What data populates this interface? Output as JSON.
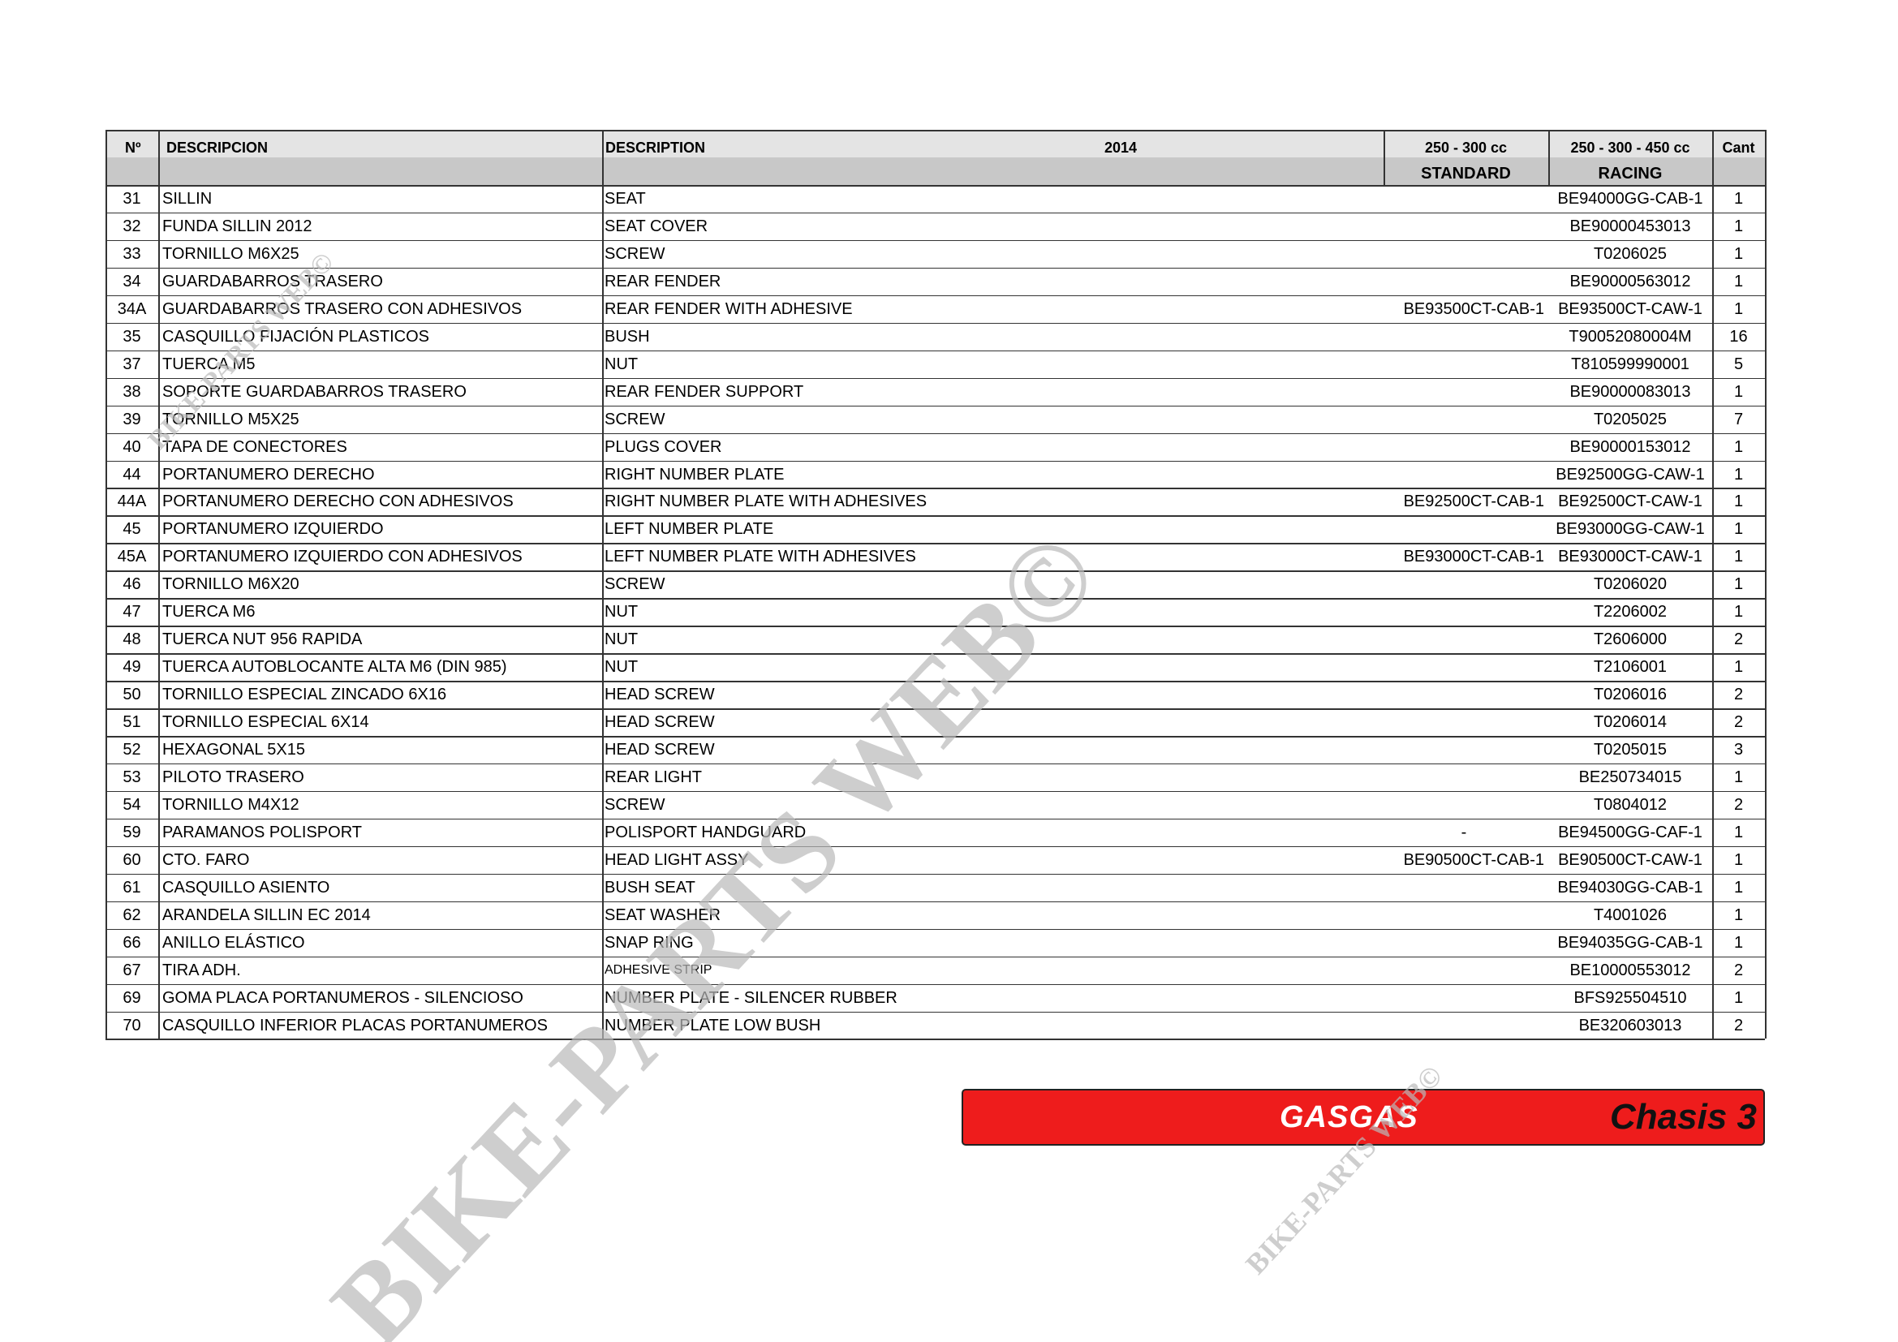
{
  "header": {
    "no": "Nº",
    "descripcion": "DESCRIPCION",
    "description": "DESCRIPTION",
    "year": "2014",
    "standard_cc": "250 - 300 cc",
    "standard": "STANDARD",
    "racing_cc": "250 - 300 - 450 cc",
    "racing": "RACING",
    "cant": "Cant"
  },
  "table": {
    "rows": [
      {
        "no": "31",
        "descripcion": "SILLIN",
        "description": "SEAT",
        "racing": "BE94000GG-CAB-1",
        "cant": 1
      },
      {
        "no": "32",
        "descripcion": "FUNDA SILLIN 2012",
        "description": "SEAT COVER",
        "racing": "BE90000453013",
        "cant": 1
      },
      {
        "no": "33",
        "descripcion": "TORNILLO M6X25",
        "description": "SCREW",
        "racing": "T0206025",
        "cant": 1
      },
      {
        "no": "34",
        "descripcion": "GUARDABARROS TRASERO",
        "description": "REAR FENDER",
        "racing": "BE90000563012",
        "cant": 1
      },
      {
        "no": "34A",
        "descripcion": "GUARDABARROS TRASERO CON ADHESIVOS",
        "description": "REAR FENDER WITH ADHESIVE",
        "standard": "BE93500CT-CAB-1",
        "racing": "BE93500CT-CAW-1",
        "cant": 1
      },
      {
        "no": "35",
        "descripcion": "CASQUILLO FIJACIÓN PLASTICOS",
        "description": "BUSH",
        "racing": "T90052080004M",
        "cant": 16
      },
      {
        "no": "37",
        "descripcion": "TUERCA M5",
        "description": "NUT",
        "racing": "T810599990001",
        "cant": 5
      },
      {
        "no": "38",
        "descripcion": "SOPORTE GUARDABARROS TRASERO",
        "description": "REAR FENDER SUPPORT",
        "racing": "BE90000083013",
        "cant": 1
      },
      {
        "no": "39",
        "descripcion": "TORNILLO M5X25",
        "description": "SCREW",
        "racing": "T0205025",
        "cant": 7
      },
      {
        "no": "40",
        "descripcion": "TAPA DE CONECTORES",
        "description": "PLUGS COVER",
        "racing": "BE90000153012",
        "cant": 1
      },
      {
        "no": "44",
        "descripcion": "PORTANUMERO DERECHO",
        "description": "RIGHT NUMBER PLATE",
        "racing": "BE92500GG-CAW-1",
        "cant": 1
      },
      {
        "no": "44A",
        "descripcion": "PORTANUMERO DERECHO CON ADHESIVOS",
        "description": "RIGHT NUMBER PLATE WITH ADHESIVES",
        "standard": "BE92500CT-CAB-1",
        "racing": "BE92500CT-CAW-1",
        "cant": 1
      },
      {
        "no": "45",
        "descripcion": "PORTANUMERO IZQUIERDO",
        "description": "LEFT NUMBER PLATE",
        "racing": "BE93000GG-CAW-1",
        "cant": 1
      },
      {
        "no": "45A",
        "descripcion": "PORTANUMERO IZQUIERDO CON ADHESIVOS",
        "description": "LEFT NUMBER PLATE WITH ADHESIVES",
        "standard": "BE93000CT-CAB-1",
        "racing": "BE93000CT-CAW-1",
        "cant": 1
      },
      {
        "no": "46",
        "descripcion": "TORNILLO M6X20",
        "description": "SCREW",
        "racing": "T0206020",
        "cant": 1
      },
      {
        "no": "47",
        "descripcion": "TUERCA M6",
        "description": "NUT",
        "racing": "T2206002",
        "cant": 1
      },
      {
        "no": "48",
        "descripcion": "TUERCA NUT 956 RAPIDA",
        "description": "NUT",
        "racing": "T2606000",
        "cant": 2
      },
      {
        "no": "49",
        "descripcion": "TUERCA AUTOBLOCANTE ALTA M6 (DIN 985)",
        "description": "NUT",
        "racing": "T2106001",
        "cant": 1
      },
      {
        "no": "50",
        "descripcion": "TORNILLO ESPECIAL ZINCADO 6X16",
        "description": "HEAD SCREW",
        "racing": "T0206016",
        "cant": 2
      },
      {
        "no": "51",
        "descripcion": "TORNILLO ESPECIAL 6X14",
        "description": "HEAD SCREW",
        "racing": "T0206014",
        "cant": 2
      },
      {
        "no": "52",
        "descripcion": "HEXAGONAL 5X15",
        "description": "HEAD SCREW",
        "racing": "T0205015",
        "cant": 3
      },
      {
        "no": "53",
        "descripcion": "PILOTO TRASERO",
        "description": "REAR LIGHT",
        "racing": "BE250734015",
        "cant": 1
      },
      {
        "no": "54",
        "descripcion": "TORNILLO M4X12",
        "description": "SCREW",
        "racing": "T0804012",
        "cant": 2
      },
      {
        "no": "59",
        "descripcion": "PARAMANOS POLISPORT",
        "description": "POLISPORT HANDGUARD",
        "standard": "-",
        "racing": "BE94500GG-CAF-1",
        "cant": 1
      },
      {
        "no": "60",
        "descripcion": "CTO. FARO",
        "description": "HEAD LIGHT ASSY",
        "standard": "BE90500CT-CAB-1",
        "racing": "BE90500CT-CAW-1",
        "cant": 1
      },
      {
        "no": "61",
        "descripcion": "CASQUILLO ASIENTO",
        "description": "BUSH SEAT",
        "racing": "BE94030GG-CAB-1",
        "cant": 1
      },
      {
        "no": "62",
        "descripcion": "ARANDELA SILLIN EC 2014",
        "description": "SEAT WASHER",
        "racing": "T4001026",
        "cant": 1
      },
      {
        "no": "66",
        "descripcion": "ANILLO ELÁSTICO",
        "description": "SNAP RING",
        "racing": "BE94035GG-CAB-1",
        "cant": 1
      },
      {
        "no": "67",
        "descripcion": "TIRA ADH.",
        "description": "ADHESIVE STRIP",
        "racing": "BE10000553012",
        "cant": 2
      },
      {
        "no": "69",
        "descripcion": "GOMA PLACA PORTANUMEROS - SILENCIOSO",
        "description": "NUMBER PLATE - SILENCER RUBBER",
        "racing": "BFS925504510",
        "cant": 1
      },
      {
        "no": "70",
        "descripcion": "CASQUILLO INFERIOR PLACAS PORTANUMEROS",
        "description": "NUMBER PLATE LOW BUSH",
        "racing": "BE320603013",
        "cant": 2
      }
    ]
  },
  "footer": {
    "brand": "GASGAS",
    "section": "Chasis 3"
  },
  "watermarks": [
    "BIKE-PARTS WEB©",
    "BIKE-PARTS WEB©",
    "BIKE-PARTS WEB©",
    "BIKE-PARTS WEB©"
  ]
}
